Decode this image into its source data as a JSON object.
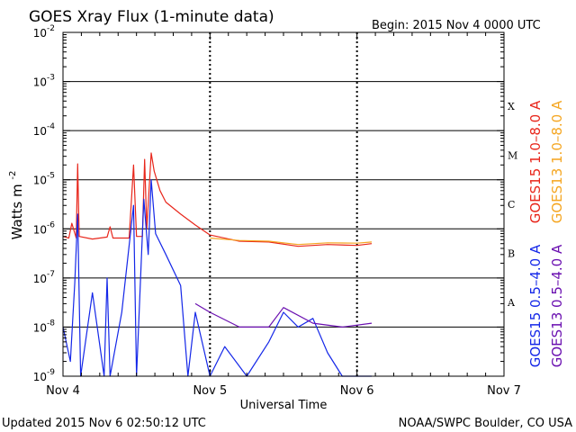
{
  "chart_data": {
    "type": "line",
    "title": "GOES Xray Flux (1-minute data)",
    "begin_label": "Begin:  2015 Nov 4 0000 UTC",
    "xlabel": "Universal Time",
    "ylabel_main": "Watts m",
    "ylabel_sup": "-2",
    "x_unit": "days since 2015 Nov 4 0000 UTC",
    "xlim": [
      0,
      3
    ],
    "x_ticks": [
      {
        "value": 0,
        "label": "Nov 4"
      },
      {
        "value": 1,
        "label": "Nov 5"
      },
      {
        "value": 2,
        "label": "Nov 6"
      },
      {
        "value": 3,
        "label": "Nov 7"
      }
    ],
    "y_scale": "log",
    "ylim": [
      1e-09,
      0.01
    ],
    "y_ticks": [
      {
        "exp": -2,
        "base": "10",
        "sup": "-2"
      },
      {
        "exp": -3,
        "base": "10",
        "sup": "-3"
      },
      {
        "exp": -4,
        "base": "10",
        "sup": "-4"
      },
      {
        "exp": -5,
        "base": "10",
        "sup": "-5"
      },
      {
        "exp": -6,
        "base": "10",
        "sup": "-6"
      },
      {
        "exp": -7,
        "base": "10",
        "sup": "-7"
      },
      {
        "exp": -8,
        "base": "10",
        "sup": "-8"
      },
      {
        "exp": -9,
        "base": "10",
        "sup": "-9"
      }
    ],
    "flare_classes": [
      {
        "label": "X",
        "exp": -4
      },
      {
        "label": "M",
        "exp": -5
      },
      {
        "label": "C",
        "exp": -6
      },
      {
        "label": "B",
        "exp": -7
      },
      {
        "label": "A",
        "exp": -8
      }
    ],
    "grid": true,
    "legend_position": "right",
    "series": [
      {
        "name": "GOES15 1.0–8.0 A",
        "color": "#e8261b",
        "points": [
          [
            0,
            7e-07
          ],
          [
            0.04,
            6.5e-07
          ],
          [
            0.06,
            1.3e-06
          ],
          [
            0.09,
            6.5e-07
          ],
          [
            0.1,
            2.1e-05
          ],
          [
            0.11,
            7e-07
          ],
          [
            0.2,
            6.2e-07
          ],
          [
            0.3,
            6.8e-07
          ],
          [
            0.32,
            1.1e-06
          ],
          [
            0.34,
            6.5e-07
          ],
          [
            0.45,
            6.5e-07
          ],
          [
            0.48,
            2e-05
          ],
          [
            0.5,
            7e-07
          ],
          [
            0.54,
            7e-07
          ],
          [
            0.555,
            2.6e-05
          ],
          [
            0.57,
            1e-06
          ],
          [
            0.6,
            3.5e-05
          ],
          [
            0.62,
            1.5e-05
          ],
          [
            0.66,
            6e-06
          ],
          [
            0.7,
            3.5e-06
          ],
          [
            0.8,
            2e-06
          ],
          [
            0.9,
            1.2e-06
          ],
          [
            1.0,
            7.5e-07
          ],
          [
            1.2,
            5.6e-07
          ],
          [
            1.4,
            5.4e-07
          ],
          [
            1.6,
            4.4e-07
          ],
          [
            1.8,
            4.8e-07
          ],
          [
            2.0,
            4.6e-07
          ],
          [
            2.1,
            5e-07
          ]
        ]
      },
      {
        "name": "GOES13 1.0–8.0 A",
        "color": "#f5a621",
        "points": [
          [
            1.0,
            6.5e-07
          ],
          [
            1.2,
            5.8e-07
          ],
          [
            1.4,
            5.6e-07
          ],
          [
            1.6,
            4.8e-07
          ],
          [
            1.8,
            5.2e-07
          ],
          [
            2.0,
            5.1e-07
          ],
          [
            2.1,
            5.4e-07
          ]
        ]
      },
      {
        "name": "GOES15 0.5–4.0 A",
        "color": "#1427e8",
        "points": [
          [
            0,
            1e-08
          ],
          [
            0.05,
            2e-09
          ],
          [
            0.08,
            8e-08
          ],
          [
            0.1,
            2e-06
          ],
          [
            0.12,
            1e-09
          ],
          [
            0.2,
            5e-08
          ],
          [
            0.28,
            1e-09
          ],
          [
            0.3,
            1e-07
          ],
          [
            0.32,
            1e-09
          ],
          [
            0.4,
            2e-08
          ],
          [
            0.48,
            3e-06
          ],
          [
            0.5,
            1e-09
          ],
          [
            0.55,
            4e-06
          ],
          [
            0.58,
            3e-07
          ],
          [
            0.6,
            1e-05
          ],
          [
            0.63,
            8e-07
          ],
          [
            0.7,
            3e-07
          ],
          [
            0.8,
            7e-08
          ],
          [
            0.85,
            1e-09
          ],
          [
            0.9,
            2e-08
          ],
          [
            1.0,
            1e-09
          ],
          [
            1.1,
            4e-09
          ],
          [
            1.25,
            1e-09
          ],
          [
            1.4,
            5e-09
          ],
          [
            1.5,
            2e-08
          ],
          [
            1.6,
            1e-08
          ],
          [
            1.7,
            1.5e-08
          ],
          [
            1.8,
            3e-09
          ],
          [
            1.9,
            1e-09
          ],
          [
            2.0,
            1e-09
          ],
          [
            2.1,
            1e-09
          ]
        ]
      },
      {
        "name": "GOES13 0.5–4.0 A",
        "color": "#6a0fb0",
        "points": [
          [
            0.9,
            3e-08
          ],
          [
            1.0,
            2e-08
          ],
          [
            1.2,
            1e-08
          ],
          [
            1.4,
            1e-08
          ],
          [
            1.5,
            2.5e-08
          ],
          [
            1.7,
            1.2e-08
          ],
          [
            1.9,
            1e-08
          ],
          [
            2.1,
            1.2e-08
          ]
        ]
      }
    ]
  },
  "footer": {
    "updated": "Updated 2015 Nov  6 02:50:12 UTC",
    "credit": "NOAA/SWPC Boulder, CO USA"
  }
}
